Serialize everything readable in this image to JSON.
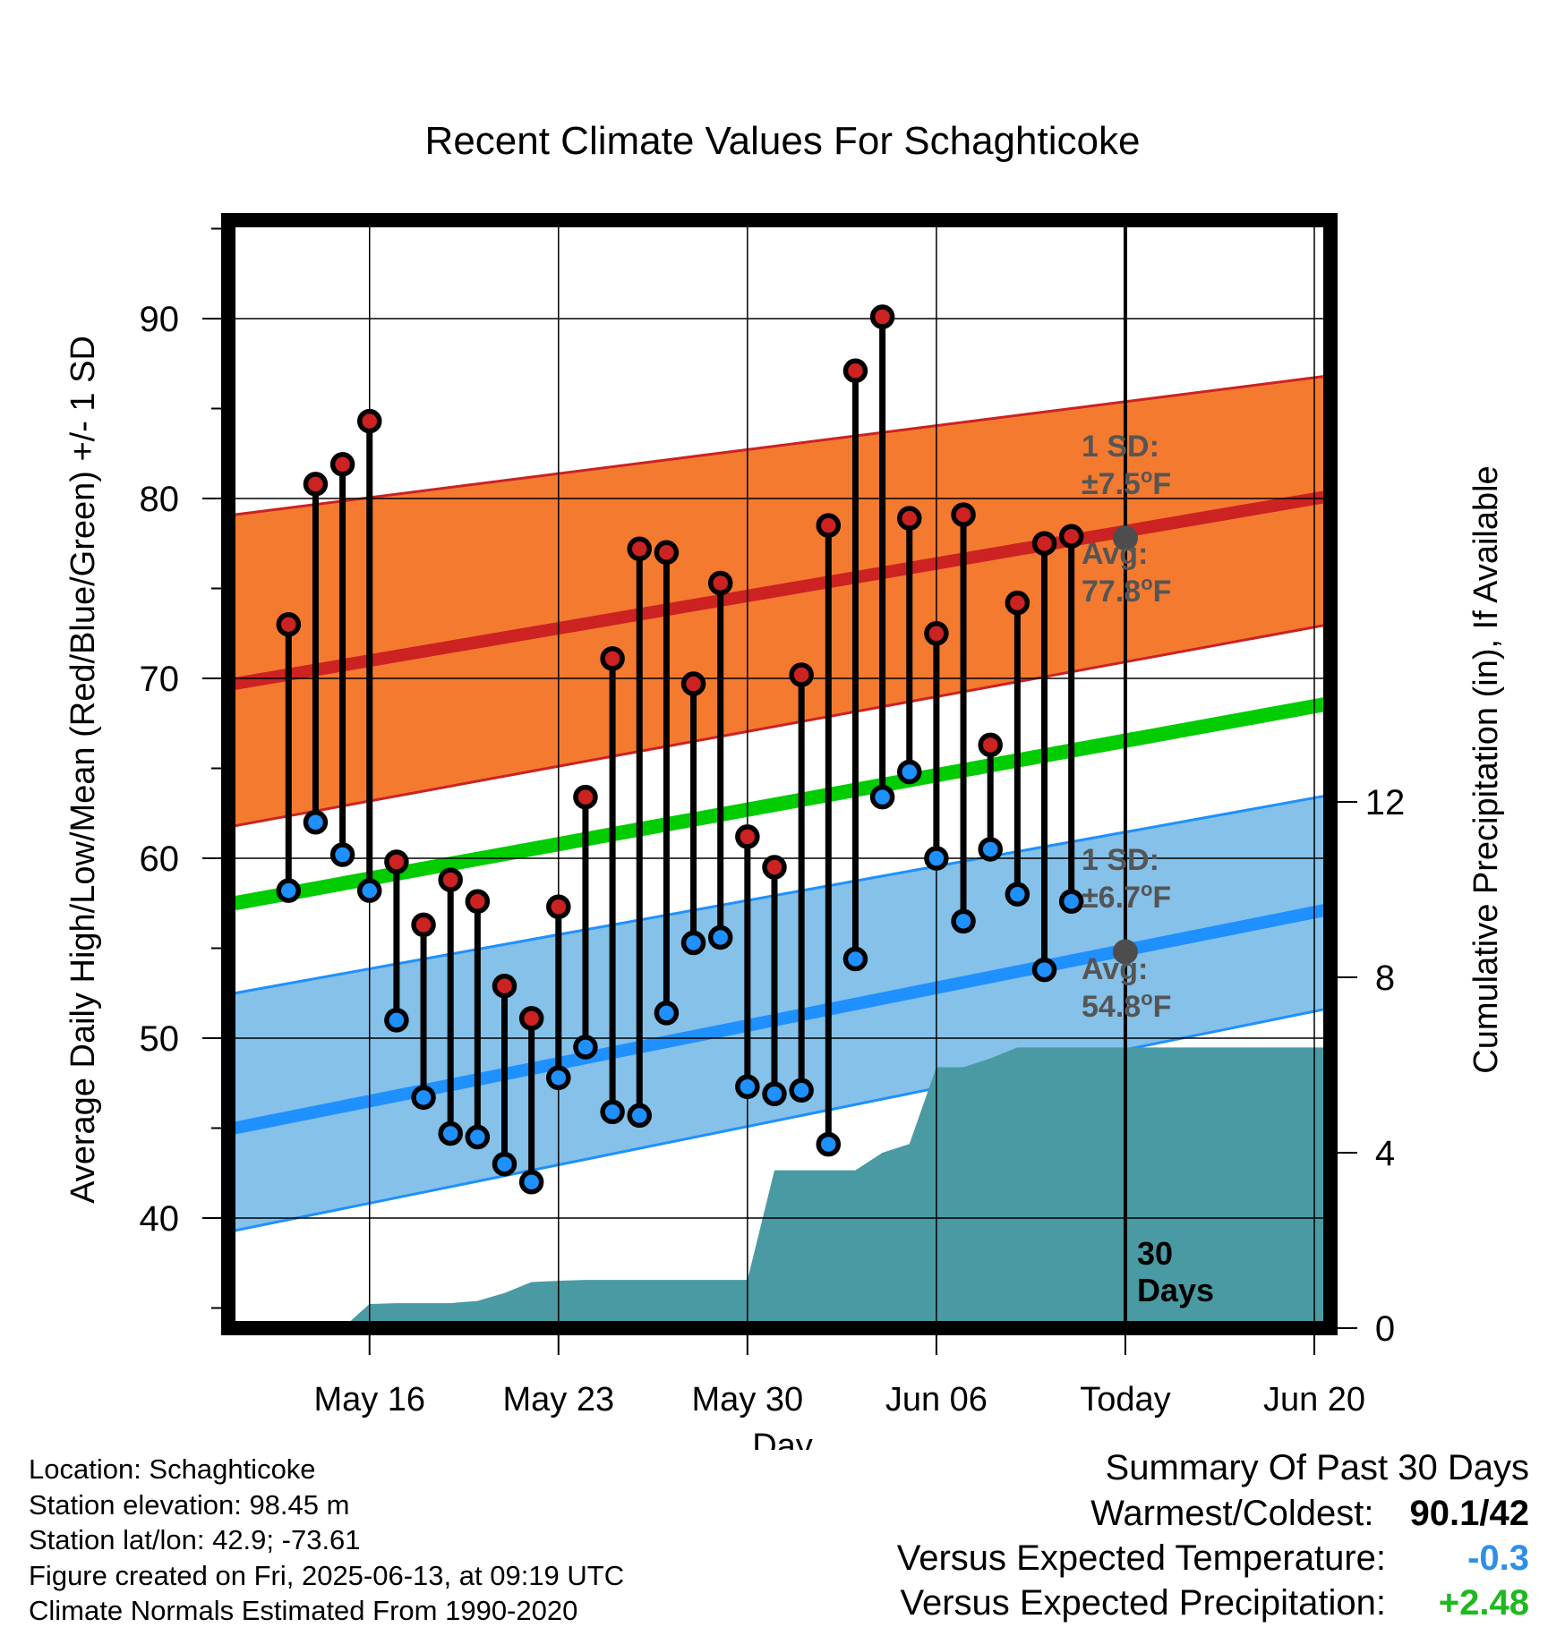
{
  "chart_data": {
    "type": "line",
    "title": "Recent Climate Values For Schaghticoke",
    "xlabel": "Day",
    "ylabel": "Average Daily High/Low/Mean (Red/Blue/Green) +/- 1 SD",
    "y2label": "Cumulative Precipitation (in), If Available",
    "x_range": [
      "2025-05-11",
      "2025-06-22"
    ],
    "ylim": [
      34.5,
      95
    ],
    "y2lim": [
      0,
      24
    ],
    "yticks": [
      "40",
      "50",
      "60",
      "70",
      "80",
      "90"
    ],
    "y2ticks": [
      "0",
      "4",
      "8",
      "12"
    ],
    "x_tick_labels": [
      {
        "date": "2025-05-16",
        "label": "May 16"
      },
      {
        "date": "2025-05-23",
        "label": "May 23"
      },
      {
        "date": "2025-05-30",
        "label": "May 30"
      },
      {
        "date": "2025-06-06",
        "label": "Jun 06"
      },
      {
        "date": "2025-06-13",
        "label": "Today"
      },
      {
        "date": "2025-06-20",
        "label": "Jun 20"
      }
    ],
    "grid": true,
    "today": "2025-06-13",
    "today_label_line1": "30",
    "today_label_line2": "Days",
    "colors": {
      "high": "#cc2222",
      "high_band": "#f47a30",
      "low": "#1e90ff",
      "low_band": "#85c1e9",
      "mean": "#00cc00",
      "precip": "#4a9aa3",
      "marker_high": "#cc2222",
      "marker_low": "#1e90ff",
      "avg_dot": "#4d4d4d",
      "annotation": "#555555",
      "summary_temp": "#2f8fe8",
      "summary_precip": "#1fb81f"
    },
    "normals": {
      "start_date": "2025-05-11",
      "end_date": "2025-06-22",
      "high_avg": [
        69.7,
        80.5
      ],
      "high_upper": [
        79.1,
        87.1
      ],
      "high_lower": [
        61.8,
        73.4
      ],
      "low_avg": [
        45.0,
        57.6
      ],
      "low_upper": [
        52.5,
        63.9
      ],
      "low_lower": [
        39.3,
        52.1
      ],
      "mean_avg": [
        57.5,
        69.0
      ]
    },
    "series": [
      {
        "name": "High",
        "values": [
          {
            "date": "2025-05-13",
            "value": 73.0
          },
          {
            "date": "2025-05-14",
            "value": 80.8
          },
          {
            "date": "2025-05-15",
            "value": 81.9
          },
          {
            "date": "2025-05-16",
            "value": 84.3
          },
          {
            "date": "2025-05-17",
            "value": 59.8
          },
          {
            "date": "2025-05-18",
            "value": 56.3
          },
          {
            "date": "2025-05-19",
            "value": 58.8
          },
          {
            "date": "2025-05-20",
            "value": 57.6
          },
          {
            "date": "2025-05-21",
            "value": 52.9
          },
          {
            "date": "2025-05-22",
            "value": 51.1
          },
          {
            "date": "2025-05-23",
            "value": 57.3
          },
          {
            "date": "2025-05-24",
            "value": 63.4
          },
          {
            "date": "2025-05-25",
            "value": 71.1
          },
          {
            "date": "2025-05-26",
            "value": 77.2
          },
          {
            "date": "2025-05-27",
            "value": 77.0
          },
          {
            "date": "2025-05-28",
            "value": 69.7
          },
          {
            "date": "2025-05-29",
            "value": 75.3
          },
          {
            "date": "2025-05-30",
            "value": 61.2
          },
          {
            "date": "2025-05-31",
            "value": 59.5
          },
          {
            "date": "2025-06-01",
            "value": 70.2
          },
          {
            "date": "2025-06-02",
            "value": 78.5
          },
          {
            "date": "2025-06-03",
            "value": 87.1
          },
          {
            "date": "2025-06-04",
            "value": 90.1
          },
          {
            "date": "2025-06-05",
            "value": 78.9
          },
          {
            "date": "2025-06-06",
            "value": 72.5
          },
          {
            "date": "2025-06-07",
            "value": 79.1
          },
          {
            "date": "2025-06-08",
            "value": 66.3
          },
          {
            "date": "2025-06-09",
            "value": 74.2
          },
          {
            "date": "2025-06-10",
            "value": 77.5
          },
          {
            "date": "2025-06-11",
            "value": 77.9
          }
        ]
      },
      {
        "name": "Low",
        "values": [
          {
            "date": "2025-05-13",
            "value": 58.2
          },
          {
            "date": "2025-05-14",
            "value": 62.0
          },
          {
            "date": "2025-05-15",
            "value": 60.2
          },
          {
            "date": "2025-05-16",
            "value": 58.2
          },
          {
            "date": "2025-05-17",
            "value": 51.0
          },
          {
            "date": "2025-05-18",
            "value": 46.7
          },
          {
            "date": "2025-05-19",
            "value": 44.7
          },
          {
            "date": "2025-05-20",
            "value": 44.5
          },
          {
            "date": "2025-05-21",
            "value": 43.0
          },
          {
            "date": "2025-05-22",
            "value": 42.0
          },
          {
            "date": "2025-05-23",
            "value": 47.8
          },
          {
            "date": "2025-05-24",
            "value": 49.5
          },
          {
            "date": "2025-05-25",
            "value": 45.9
          },
          {
            "date": "2025-05-26",
            "value": 45.7
          },
          {
            "date": "2025-05-27",
            "value": 51.4
          },
          {
            "date": "2025-05-28",
            "value": 55.3
          },
          {
            "date": "2025-05-29",
            "value": 55.6
          },
          {
            "date": "2025-05-30",
            "value": 47.3
          },
          {
            "date": "2025-05-31",
            "value": 46.9
          },
          {
            "date": "2025-06-01",
            "value": 47.1
          },
          {
            "date": "2025-06-02",
            "value": 44.1
          },
          {
            "date": "2025-06-03",
            "value": 54.4
          },
          {
            "date": "2025-06-04",
            "value": 63.4
          },
          {
            "date": "2025-06-05",
            "value": 64.8
          },
          {
            "date": "2025-06-06",
            "value": 60.0
          },
          {
            "date": "2025-06-07",
            "value": 56.5
          },
          {
            "date": "2025-06-08",
            "value": 60.5
          },
          {
            "date": "2025-06-09",
            "value": 58.0
          },
          {
            "date": "2025-06-10",
            "value": 53.8
          },
          {
            "date": "2025-06-11",
            "value": 57.6
          }
        ]
      }
    ],
    "precipitation": [
      {
        "date": "2025-05-11",
        "value": 0
      },
      {
        "date": "2025-05-14",
        "value": 0
      },
      {
        "date": "2025-05-15",
        "value": 0.0
      },
      {
        "date": "2025-05-16",
        "value": 0.55
      },
      {
        "date": "2025-05-17",
        "value": 0.57
      },
      {
        "date": "2025-05-18",
        "value": 0.57
      },
      {
        "date": "2025-05-19",
        "value": 0.57
      },
      {
        "date": "2025-05-20",
        "value": 0.62
      },
      {
        "date": "2025-05-21",
        "value": 0.8
      },
      {
        "date": "2025-05-22",
        "value": 1.05
      },
      {
        "date": "2025-05-23",
        "value": 1.08
      },
      {
        "date": "2025-05-24",
        "value": 1.1
      },
      {
        "date": "2025-05-29",
        "value": 1.1
      },
      {
        "date": "2025-05-30",
        "value": 1.1
      },
      {
        "date": "2025-05-31",
        "value": 3.6
      },
      {
        "date": "2025-06-03",
        "value": 3.6
      },
      {
        "date": "2025-06-04",
        "value": 4.0
      },
      {
        "date": "2025-06-05",
        "value": 4.2
      },
      {
        "date": "2025-06-06",
        "value": 5.95
      },
      {
        "date": "2025-06-07",
        "value": 5.95
      },
      {
        "date": "2025-06-08",
        "value": 6.15
      },
      {
        "date": "2025-06-09",
        "value": 6.4
      },
      {
        "date": "2025-06-22",
        "value": 6.4
      }
    ],
    "annotations": {
      "high_sd": "1 SD:",
      "high_sd_value": "±7.5°F",
      "high_avg_label": "Avg:",
      "high_avg_value": "77.8°F",
      "high_avg_today": 77.8,
      "low_sd": "1 SD:",
      "low_sd_value": "±6.7°F",
      "low_avg_label": "Avg:",
      "low_avg_value": "54.8°F",
      "low_avg_today": 54.8
    }
  },
  "info": {
    "location": "Location: Schaghticoke",
    "elevation": "Station elevation: 98.45 m",
    "latlon": "Station lat/lon: 42.9; -73.61",
    "created": "Figure created on Fri, 2025-06-13, at 09:19 UTC",
    "normals": "Climate Normals Estimated From 1990-2020"
  },
  "summary": {
    "title": "Summary Of Past 30 Days",
    "warmest_label": "Warmest/Coldest:",
    "warmest_value": "90.1/42",
    "temp_label": "Versus Expected Temperature:",
    "temp_value": "-0.3",
    "precip_label": "Versus Expected Precipitation:",
    "precip_value": "+2.48"
  }
}
